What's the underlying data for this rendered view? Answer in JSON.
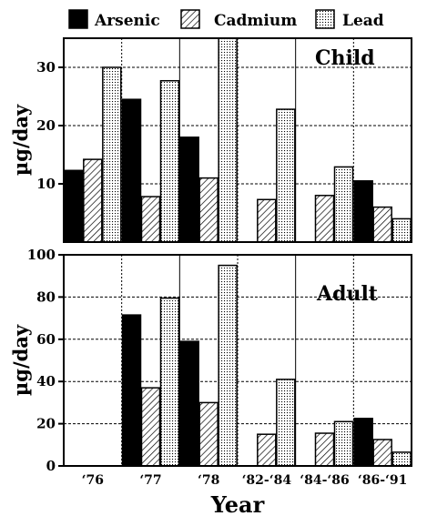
{
  "chart_data": {
    "type": "bar",
    "xlabel": "Year",
    "legend": {
      "placement": "top",
      "entries": [
        "Arsenic",
        "Cadmium",
        "Lead"
      ]
    },
    "categories": [
      "'76",
      "'77",
      "'78",
      "'82-'84",
      "'84-'86",
      "'86-'91"
    ],
    "category_labels": [
      "‘76",
      "‘77",
      "‘78",
      "‘82-‘84",
      "‘84-‘86",
      "‘86-‘91"
    ],
    "panels": [
      {
        "title": "Child",
        "ylabel": "µg/day",
        "ylim": [
          0,
          35
        ],
        "yticks": [
          10,
          20,
          30
        ],
        "series": [
          {
            "name": "Arsenic",
            "values": [
              12.3,
              24.5,
              18.0,
              null,
              null,
              10.5
            ]
          },
          {
            "name": "Cadmium",
            "values": [
              14.2,
              7.8,
              11.0,
              7.3,
              8.0,
              6.0
            ]
          },
          {
            "name": "Lead",
            "values": [
              30.0,
              27.7,
              35.0,
              22.8,
              12.9,
              4.0
            ]
          }
        ]
      },
      {
        "title": "Adult",
        "ylabel": "µg/day",
        "ylim": [
          0,
          100
        ],
        "yticks": [
          0,
          20,
          40,
          60,
          80,
          100
        ],
        "series": [
          {
            "name": "Arsenic",
            "values": [
              null,
              71.5,
              59.0,
              null,
              null,
              22.5
            ]
          },
          {
            "name": "Cadmium",
            "values": [
              null,
              37.0,
              30.0,
              15.0,
              15.5,
              12.5
            ]
          },
          {
            "name": "Lead",
            "values": [
              null,
              79.5,
              95.0,
              41.0,
              21.0,
              6.5
            ]
          }
        ]
      }
    ]
  }
}
